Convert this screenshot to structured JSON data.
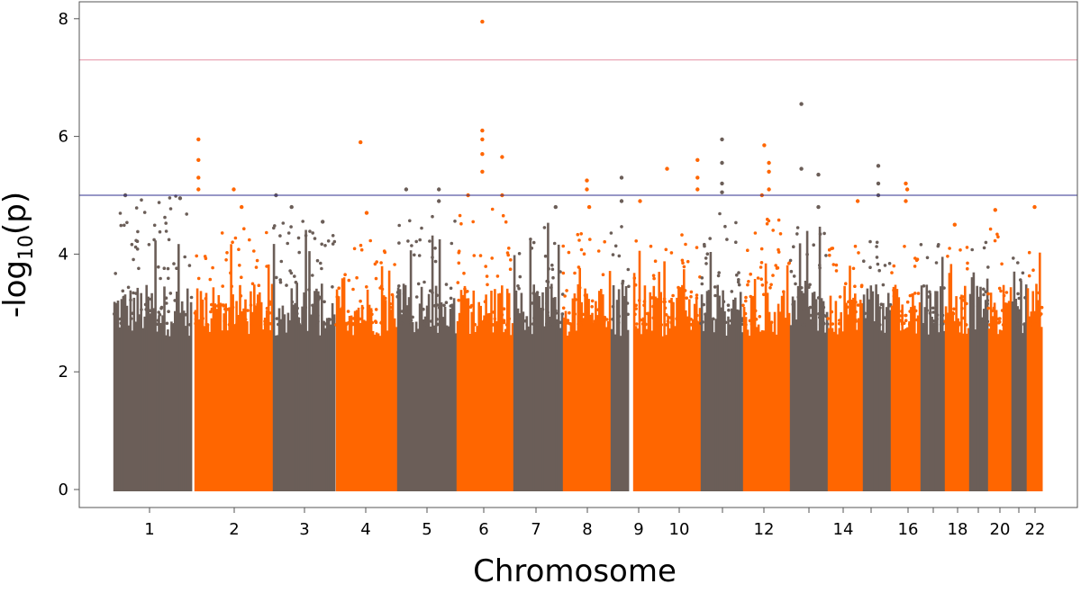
{
  "chart_data": {
    "type": "scatter",
    "subtype": "manhattan",
    "title": "",
    "xlabel": "Chromosome",
    "ylabel": "-log10(p)",
    "ylabel_parts": {
      "prefix": "-log",
      "sub": "10",
      "suffix": "(p)"
    },
    "ylim": [
      0,
      8.25
    ],
    "yticks": [
      0,
      2,
      4,
      6,
      8
    ],
    "grid": false,
    "legend": "none",
    "colors": {
      "odd": "#6b5e58",
      "even": "#ff6600",
      "genome_wide_line": "#e8a0b0",
      "suggestive_line": "#2f2f8f",
      "axis": "#555555"
    },
    "thresholds": [
      {
        "name": "genome-wide",
        "y": 7.3
      },
      {
        "name": "suggestive",
        "y": 5.0
      }
    ],
    "chromosomes": [
      {
        "chr": 1,
        "label": "1",
        "color": "odd",
        "max": 5.0,
        "hits": [
          [
            0.15,
            5.0
          ],
          [
            0.85,
            4.95
          ]
        ]
      },
      {
        "chr": 2,
        "label": "2",
        "color": "even",
        "max": 4.5,
        "hits": [
          [
            0.05,
            5.95
          ],
          [
            0.05,
            5.6
          ],
          [
            0.05,
            5.3
          ],
          [
            0.05,
            5.1
          ],
          [
            0.5,
            5.1
          ],
          [
            0.6,
            4.8
          ]
        ]
      },
      {
        "chr": 3,
        "label": "3",
        "color": "odd",
        "max": 4.6,
        "hits": [
          [
            0.05,
            5.0
          ],
          [
            0.3,
            4.8
          ],
          [
            0.8,
            4.55
          ]
        ]
      },
      {
        "chr": 4,
        "label": "4",
        "color": "even",
        "max": 4.3,
        "hits": [
          [
            0.4,
            5.9
          ],
          [
            0.5,
            4.7
          ]
        ]
      },
      {
        "chr": 5,
        "label": "5",
        "color": "odd",
        "max": 4.8,
        "hits": [
          [
            0.15,
            5.1
          ],
          [
            0.7,
            5.1
          ],
          [
            0.7,
            4.9
          ]
        ]
      },
      {
        "chr": 6,
        "label": "6",
        "color": "even",
        "max": 4.9,
        "hits": [
          [
            0.45,
            7.95
          ],
          [
            0.45,
            6.1
          ],
          [
            0.45,
            5.95
          ],
          [
            0.45,
            5.7
          ],
          [
            0.45,
            5.4
          ],
          [
            0.8,
            5.65
          ],
          [
            0.2,
            5.0
          ],
          [
            0.8,
            5.0
          ]
        ]
      },
      {
        "chr": 7,
        "label": "7",
        "color": "odd",
        "max": 4.6,
        "hits": [
          [
            0.85,
            4.8
          ]
        ]
      },
      {
        "chr": 8,
        "label": "8",
        "color": "even",
        "max": 4.4,
        "hits": [
          [
            0.5,
            5.25
          ],
          [
            0.5,
            5.1
          ],
          [
            0.55,
            4.8
          ]
        ]
      },
      {
        "chr": 9,
        "label": "9",
        "color": "odd",
        "max": 4.6,
        "hits": [
          [
            0.6,
            5.3
          ],
          [
            0.6,
            4.9
          ]
        ]
      },
      {
        "chr": 10,
        "label": "10",
        "color": "even",
        "max": 4.4,
        "hits": [
          [
            0.5,
            5.45
          ],
          [
            0.95,
            5.6
          ],
          [
            0.95,
            5.3
          ],
          [
            0.95,
            5.1
          ],
          [
            0.1,
            4.9
          ]
        ]
      },
      {
        "chr": 11,
        "label": "",
        "color": "odd",
        "max": 4.7,
        "hits": [
          [
            0.5,
            5.95
          ],
          [
            0.5,
            5.55
          ],
          [
            0.5,
            5.2
          ],
          [
            0.5,
            5.05
          ]
        ]
      },
      {
        "chr": 12,
        "label": "12",
        "color": "even",
        "max": 4.6,
        "hits": [
          [
            0.45,
            5.85
          ],
          [
            0.55,
            5.55
          ],
          [
            0.55,
            5.4
          ],
          [
            0.55,
            5.1
          ],
          [
            0.4,
            5.0
          ]
        ]
      },
      {
        "chr": 13,
        "label": "",
        "color": "odd",
        "max": 4.6,
        "hits": [
          [
            0.3,
            6.55
          ],
          [
            0.3,
            5.45
          ],
          [
            0.75,
            5.35
          ],
          [
            0.75,
            4.8
          ]
        ]
      },
      {
        "chr": 14,
        "label": "14",
        "color": "even",
        "max": 4.2,
        "hits": [
          [
            0.85,
            4.9
          ]
        ]
      },
      {
        "chr": 15,
        "label": "",
        "color": "odd",
        "max": 4.3,
        "hits": [
          [
            0.55,
            5.5
          ],
          [
            0.55,
            5.2
          ],
          [
            0.55,
            5.0
          ]
        ]
      },
      {
        "chr": 16,
        "label": "16",
        "color": "even",
        "max": 4.2,
        "hits": [
          [
            0.5,
            5.2
          ],
          [
            0.55,
            5.1
          ],
          [
            0.5,
            4.9
          ]
        ]
      },
      {
        "chr": 17,
        "label": "",
        "color": "odd",
        "max": 4.3,
        "hits": []
      },
      {
        "chr": 18,
        "label": "18",
        "color": "even",
        "max": 4.2,
        "hits": [
          [
            0.4,
            4.5
          ]
        ]
      },
      {
        "chr": 19,
        "label": "",
        "color": "odd",
        "max": 4.2,
        "hits": []
      },
      {
        "chr": 20,
        "label": "20",
        "color": "even",
        "max": 4.5,
        "hits": [
          [
            0.3,
            4.75
          ]
        ]
      },
      {
        "chr": 21,
        "label": "",
        "color": "odd",
        "max": 4.0,
        "hits": []
      },
      {
        "chr": 22,
        "label": "22",
        "color": "even",
        "max": 4.4,
        "hits": [
          [
            0.5,
            4.8
          ]
        ]
      }
    ]
  }
}
